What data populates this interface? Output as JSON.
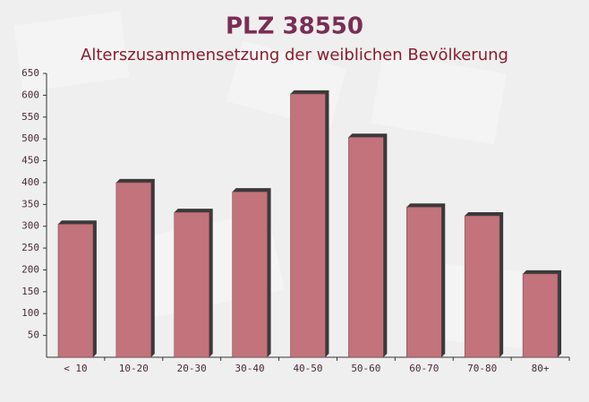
{
  "chart_data": {
    "type": "bar",
    "title": "PLZ 38550",
    "subtitle": "Alterszusammensetzung der weiblichen Bevölkerung",
    "categories": [
      "< 10",
      "10-20",
      "20-30",
      "30-40",
      "40-50",
      "50-60",
      "60-70",
      "70-80",
      "80+"
    ],
    "values": [
      305,
      400,
      332,
      379,
      603,
      504,
      344,
      324,
      191
    ],
    "color": "#c2737b",
    "ylim": [
      0,
      650
    ],
    "yticks": [
      50,
      100,
      150,
      200,
      250,
      300,
      350,
      400,
      450,
      500,
      550,
      600,
      650
    ],
    "grid": false
  }
}
